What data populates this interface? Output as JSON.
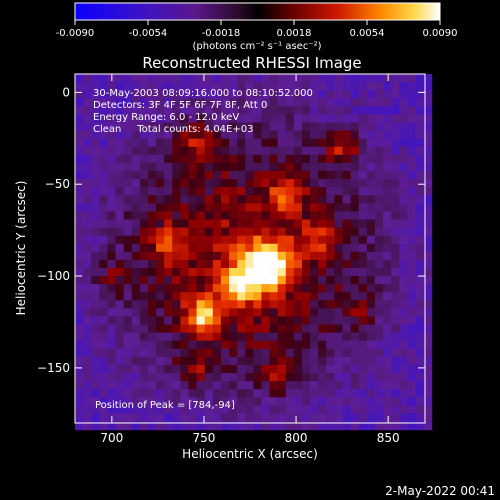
{
  "chart_data": {
    "type": "heatmap",
    "title": "Reconstructed RHESSI Image",
    "xlabel": "Heliocentric X (arcsec)",
    "ylabel": "Heliocentric Y (arcsec)",
    "xlim": [
      680,
      870
    ],
    "ylim": [
      -180,
      10
    ],
    "x_ticks": [
      700,
      750,
      800,
      850
    ],
    "y_ticks": [
      0,
      -50,
      -100,
      -150
    ],
    "colorbar": {
      "range": [
        -0.009,
        0.009
      ],
      "ticks": [
        "-0.0090",
        "-0.0054",
        "-0.0018",
        "0.0018",
        "0.0054",
        "0.0090"
      ],
      "units": "(photons cm⁻² s⁻¹ asec⁻²)"
    },
    "annotations": [
      "30-May-2003 08:09:16.000 to 08:10:52.000",
      "Detectors: 3F 4F 5F 6F 7F 8F, Att 0",
      "Energy Range: 6.0 - 12.0 keV",
      "Clean     Total counts: 4.04E+03"
    ],
    "peak_label": "Position of Peak = [784,-94]",
    "peak": [
      784,
      -94
    ],
    "sources": [
      {
        "x": 784,
        "y": -94,
        "intensity": 0.009
      },
      {
        "x": 750,
        "y": -122,
        "intensity": 0.0072
      },
      {
        "x": 770,
        "y": -105,
        "intensity": 0.006
      },
      {
        "x": 730,
        "y": -82,
        "intensity": 0.004
      },
      {
        "x": 795,
        "y": -55,
        "intensity": 0.0042
      },
      {
        "x": 826,
        "y": -30,
        "intensity": 0.005
      },
      {
        "x": 745,
        "y": -27,
        "intensity": 0.004
      },
      {
        "x": 812,
        "y": -80,
        "intensity": 0.0035
      },
      {
        "x": 745,
        "y": -150,
        "intensity": 0.003
      },
      {
        "x": 790,
        "y": -155,
        "intensity": 0.0032
      },
      {
        "x": 700,
        "y": -100,
        "intensity": 0.0025
      },
      {
        "x": 835,
        "y": -118,
        "intensity": 0.0022
      }
    ]
  },
  "footer": {
    "date": "2-May-2022 00:41"
  }
}
